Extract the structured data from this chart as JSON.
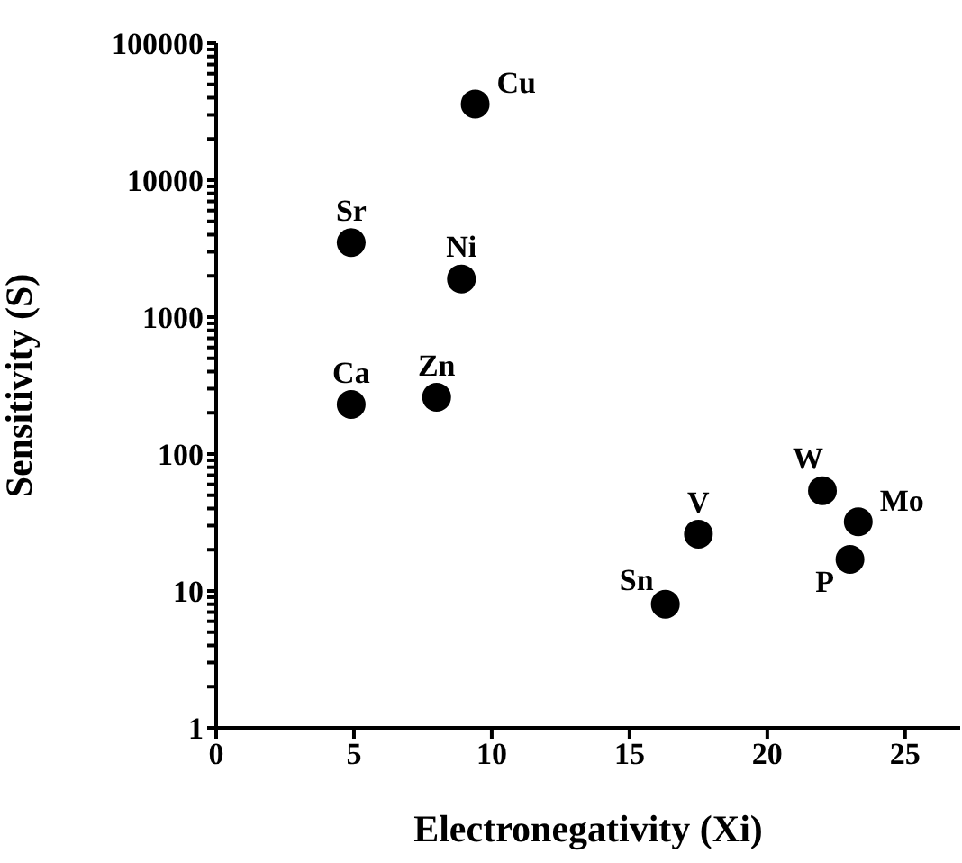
{
  "chart_data": {
    "type": "scatter",
    "xlabel": "Electronegativity (Xi)",
    "ylabel": "Sensitivity (S)",
    "log": "y",
    "grid": false,
    "legend": false,
    "marker": "circle",
    "xlim": [
      0,
      27
    ],
    "xticks": [
      0,
      5,
      10,
      15,
      20,
      25
    ],
    "ylim": [
      1,
      100000
    ],
    "yticks": [
      1,
      {
        "value": 2,
        "label": null
      },
      {
        "value": 3,
        "label": null
      },
      {
        "value": 4,
        "label": null
      },
      {
        "value": 5,
        "label": null
      },
      {
        "value": 6,
        "label": null
      },
      {
        "value": 7,
        "label": null
      },
      {
        "value": 8,
        "label": null
      },
      {
        "value": 9,
        "label": null
      },
      10,
      {
        "value": 20,
        "label": null
      },
      {
        "value": 30,
        "label": null
      },
      {
        "value": 40,
        "label": null
      },
      {
        "value": 50,
        "label": null
      },
      {
        "value": 60,
        "label": null
      },
      {
        "value": 70,
        "label": null
      },
      {
        "value": 80,
        "label": null
      },
      {
        "value": 90,
        "label": null
      },
      100,
      {
        "value": 200,
        "label": null
      },
      {
        "value": 300,
        "label": null
      },
      {
        "value": 400,
        "label": null
      },
      {
        "value": 500,
        "label": null
      },
      {
        "value": 600,
        "label": null
      },
      {
        "value": 700,
        "label": null
      },
      {
        "value": 800,
        "label": null
      },
      {
        "value": 900,
        "label": null
      },
      1000,
      {
        "value": 2000,
        "label": null
      },
      {
        "value": 3000,
        "label": null
      },
      {
        "value": 4000,
        "label": null
      },
      {
        "value": 5000,
        "label": null
      },
      {
        "value": 6000,
        "label": null
      },
      {
        "value": 7000,
        "label": null
      },
      {
        "value": 8000,
        "label": null
      },
      {
        "value": 9000,
        "label": null
      },
      10000,
      {
        "value": 20000,
        "label": null
      },
      {
        "value": 30000,
        "label": null
      },
      {
        "value": 40000,
        "label": null
      },
      {
        "value": 50000,
        "label": null
      },
      {
        "value": 60000,
        "label": null
      },
      {
        "value": 70000,
        "label": null
      },
      {
        "value": 80000,
        "label": null
      },
      {
        "value": 90000,
        "label": null
      },
      100000
    ],
    "series": [
      {
        "name": "Cu",
        "color": "#000000",
        "x": [
          9.4
        ],
        "values": [
          36000
        ]
      },
      {
        "name": "Sr",
        "color": "#000000",
        "x": [
          4.9
        ],
        "values": [
          3500
        ]
      },
      {
        "name": "Ni",
        "color": "#000000",
        "x": [
          8.9
        ],
        "values": [
          1900
        ]
      },
      {
        "name": "Ca",
        "color": "#000000",
        "x": [
          4.9
        ],
        "values": [
          230
        ]
      },
      {
        "name": "Zn",
        "color": "#000000",
        "x": [
          8
        ],
        "values": [
          260
        ]
      },
      {
        "name": "V",
        "color": "#000000",
        "x": [
          17.5
        ],
        "values": [
          26
        ]
      },
      {
        "name": "Sn",
        "color": "#000000",
        "x": [
          16.3
        ],
        "values": [
          8
        ]
      },
      {
        "name": "W",
        "color": "#000000",
        "x": [
          22
        ],
        "values": [
          54
        ]
      },
      {
        "name": "Mo",
        "color": "#000000",
        "x": [
          23.3
        ],
        "values": [
          32
        ]
      },
      {
        "name": "P",
        "color": "#000000",
        "x": [
          23
        ],
        "values": [
          17
        ]
      }
    ]
  }
}
